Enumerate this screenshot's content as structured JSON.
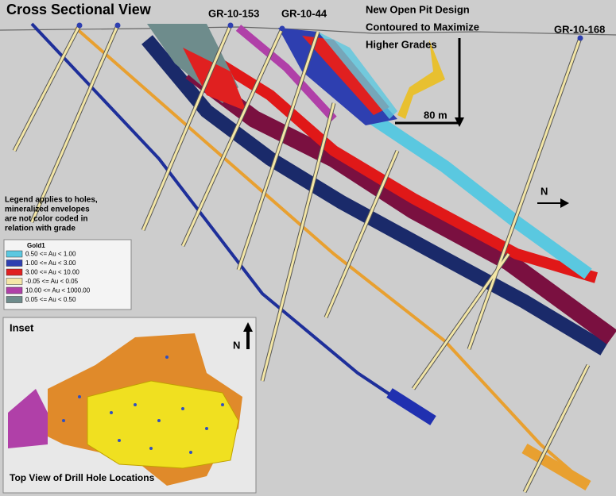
{
  "title": "Cross Sectional View",
  "holes": [
    "GR-10-153",
    "GR-10-44",
    "GR-10-168"
  ],
  "pit_note": [
    "New Open Pit Design",
    "Contoured to Maximize",
    "Higher Grades"
  ],
  "scale": "80 m",
  "north": "N",
  "legend_note": [
    "Legend applies to holes,",
    "mineralized envelopes",
    "are not color coded in",
    "relation with grade"
  ],
  "legend": {
    "title": "Gold1",
    "items": [
      {
        "label": "0.50 <= Au < 1.00",
        "color": "#5bc8e0"
      },
      {
        "label": "1.00 <= Au < 3.00",
        "color": "#2e3fb0"
      },
      {
        "label": "3.00 <= Au < 10.00",
        "color": "#e02020"
      },
      {
        "label": "-0.05 <= Au < 0.05",
        "color": "#f5e6a8"
      },
      {
        "label": "10.00 <= Au < 1000.00",
        "color": "#b040a8"
      },
      {
        "label": "0.05 <= Au < 0.50",
        "color": "#6e8c8c"
      }
    ]
  },
  "inset": {
    "title": "Inset",
    "north": "N",
    "caption": "Top View of Drill Hole Locations"
  }
}
